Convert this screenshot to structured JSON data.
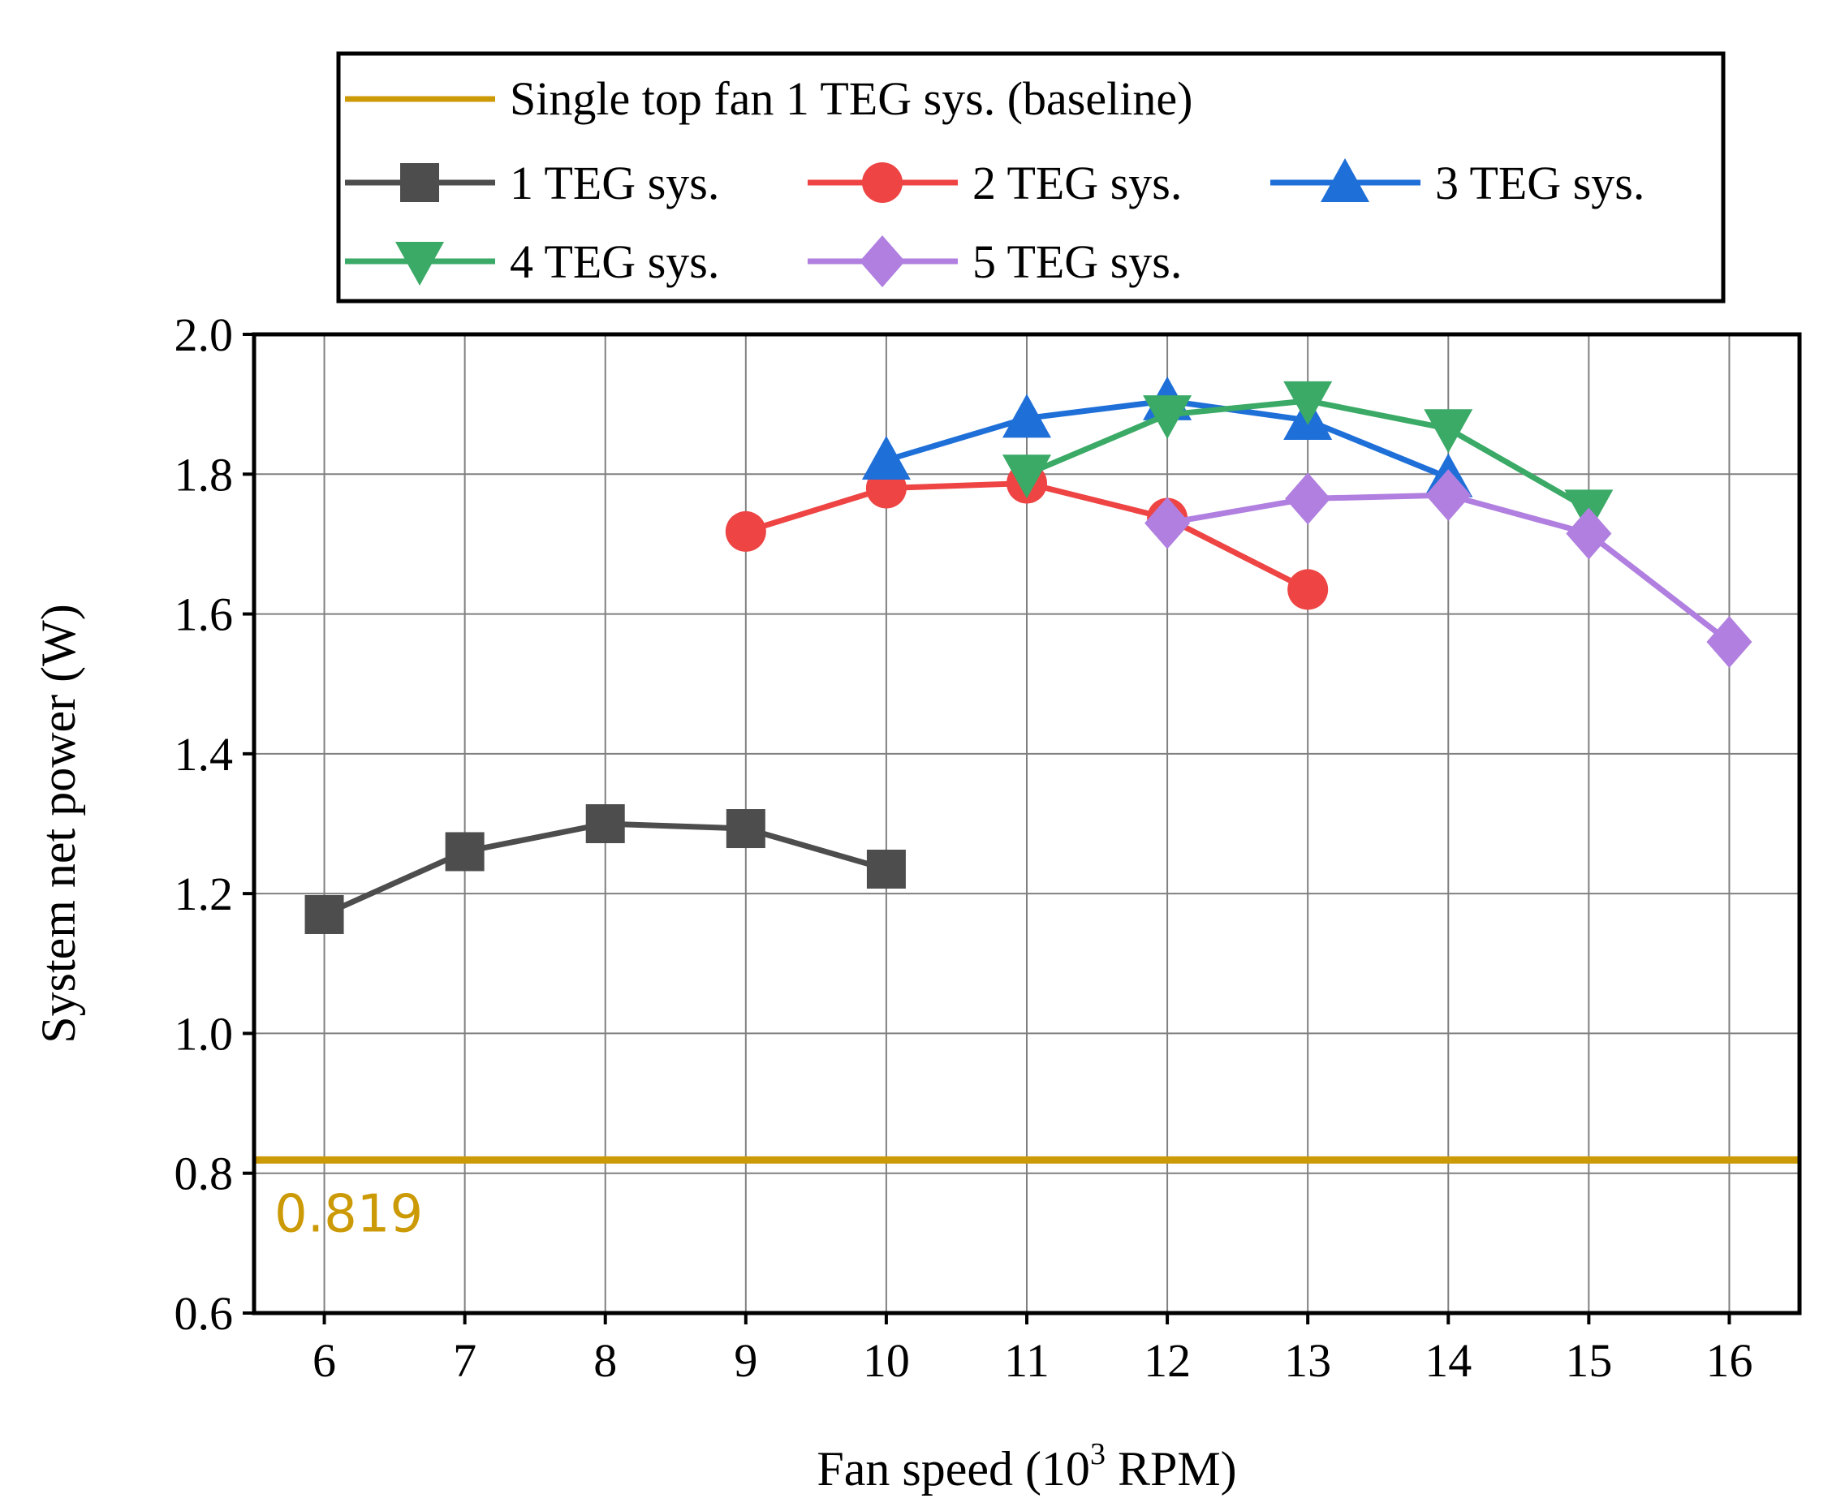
{
  "chart_data": {
    "type": "line",
    "title": "",
    "xlabel": "Fan speed (10³ RPM)",
    "xlabel_main": "Fan speed (10",
    "xlabel_sup": "3",
    "xlabel_tail": " RPM)",
    "ylabel": "System net power (W)",
    "xlim": [
      5.5,
      16.5
    ],
    "ylim": [
      0.6,
      2.0
    ],
    "x_ticks": [
      6,
      7,
      8,
      9,
      10,
      11,
      12,
      13,
      14,
      15,
      16
    ],
    "x_tick_labels": [
      "6",
      "7",
      "8",
      "9",
      "10",
      "11",
      "12",
      "13",
      "14",
      "15",
      "16"
    ],
    "y_ticks": [
      0.6,
      0.8,
      1.0,
      1.2,
      1.4,
      1.6,
      1.8,
      2.0
    ],
    "y_tick_labels": [
      "0.6",
      "0.8",
      "1.0",
      "1.2",
      "1.4",
      "1.6",
      "1.8",
      "2.0"
    ],
    "grid": true,
    "legend_position": "top-outside",
    "baseline": {
      "name": "Single top fan 1 TEG sys. (baseline)",
      "value": 0.819,
      "label": "0.819",
      "color": "#cc9a06"
    },
    "series": [
      {
        "name": "1 TEG sys.",
        "marker": "square",
        "color": "#4d4d4d",
        "x": [
          6,
          7,
          8,
          9,
          10
        ],
        "y": [
          1.17,
          1.26,
          1.3,
          1.293,
          1.235
        ]
      },
      {
        "name": "2 TEG sys.",
        "marker": "circle",
        "color": "#ee4444",
        "x": [
          9,
          10,
          11,
          12,
          13
        ],
        "y": [
          1.718,
          1.78,
          1.787,
          1.737,
          1.635
        ]
      },
      {
        "name": "3 TEG sys.",
        "marker": "triangle-up",
        "color": "#1f6fd8",
        "x": [
          10,
          11,
          12,
          13,
          14
        ],
        "y": [
          1.82,
          1.88,
          1.905,
          1.877,
          1.795
        ]
      },
      {
        "name": "4 TEG sys.",
        "marker": "triangle-down",
        "color": "#3aaa66",
        "x": [
          11,
          12,
          13,
          14,
          15
        ],
        "y": [
          1.8,
          1.885,
          1.905,
          1.865,
          1.75
        ]
      },
      {
        "name": "5 TEG sys.",
        "marker": "diamond",
        "color": "#b07fe0",
        "x": [
          12,
          13,
          14,
          15,
          16
        ],
        "y": [
          1.73,
          1.765,
          1.77,
          1.715,
          1.56
        ]
      }
    ]
  }
}
